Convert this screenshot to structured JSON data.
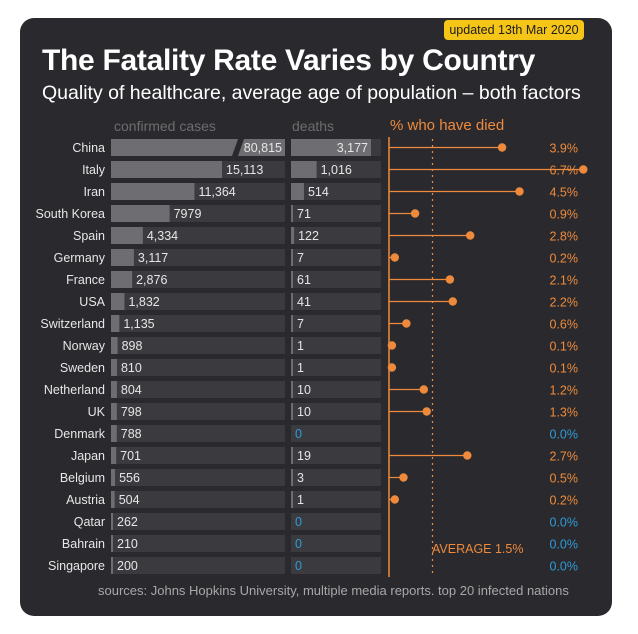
{
  "badge": "updated 13th Mar 2020",
  "title": "The Fatality Rate Varies by Country",
  "subtitle": "Quality of healthcare, average age of population – both factors",
  "source": "sources: Johns Hopkins University, multiple media reports. top 20 infected nations",
  "colors": {
    "background": "#2a2a2e",
    "track": "#3b3b3f",
    "bar": "#6e6e72",
    "accent": "#ef8a3c",
    "zero": "#2f9bd6",
    "text": "#e6e6e6",
    "badge": "#f5c518"
  },
  "chart_data": {
    "type": "bar",
    "title": "The Fatality Rate Varies by Country",
    "subtitle": "Quality of healthcare, average age of population – both factors",
    "categories": [
      "China",
      "Italy",
      "Iran",
      "South Korea",
      "Spain",
      "Germany",
      "France",
      "USA",
      "Switzerland",
      "Norway",
      "Sweden",
      "Netherland",
      "UK",
      "Denmark",
      "Japan",
      "Belgium",
      "Austria",
      "Qatar",
      "Bahrain",
      "Singapore"
    ],
    "series": [
      {
        "name": "confirmed cases",
        "values": [
          80815,
          15113,
          11364,
          7979,
          4334,
          3117,
          2876,
          1832,
          1135,
          898,
          810,
          804,
          798,
          788,
          701,
          556,
          504,
          262,
          210,
          200
        ],
        "labels": [
          "80,815",
          "15,113",
          "11,364",
          "7979",
          "4,334",
          "3,117",
          "2,876",
          "1,832",
          "1,135",
          "898",
          "810",
          "804",
          "798",
          "788",
          "701",
          "556",
          "504",
          "262",
          "210",
          "200"
        ]
      },
      {
        "name": "deaths",
        "values": [
          3177,
          1016,
          514,
          71,
          122,
          7,
          61,
          41,
          7,
          1,
          1,
          10,
          10,
          0,
          19,
          3,
          1,
          0,
          0,
          0
        ],
        "labels": [
          "3,177",
          "1,016",
          "514",
          "71",
          "122",
          "7",
          "61",
          "41",
          "7",
          "1",
          "1",
          "10",
          "10",
          "0",
          "19",
          "3",
          "1",
          "0",
          "0",
          "0"
        ]
      },
      {
        "name": "% who have died",
        "values": [
          3.9,
          6.7,
          4.5,
          0.9,
          2.8,
          0.2,
          2.1,
          2.2,
          0.6,
          0.1,
          0.1,
          1.2,
          1.3,
          0.0,
          2.7,
          0.5,
          0.2,
          0.0,
          0.0,
          0.0
        ],
        "labels": [
          "3.9%",
          "6.7%",
          "4.5%",
          "0.9%",
          "2.8%",
          "0.2%",
          "2.1%",
          "2.2%",
          "0.6%",
          "0.1%",
          "0.1%",
          "1.2%",
          "1.3%",
          "0.0%",
          "2.7%",
          "0.5%",
          "0.2%",
          "0.0%",
          "0.0%",
          "0.0%"
        ]
      }
    ],
    "cases_axis_break": true,
    "average": {
      "label": "AVERAGE 1.5%",
      "value": 1.5
    }
  }
}
